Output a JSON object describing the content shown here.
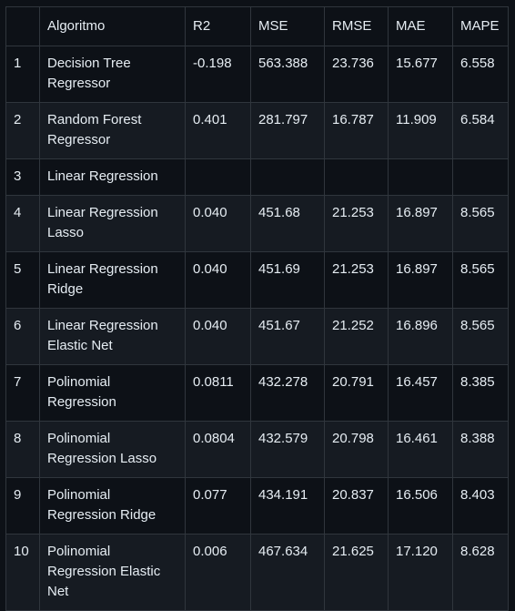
{
  "table": {
    "headers": [
      "",
      "Algoritmo",
      "R2",
      "MSE",
      "RMSE",
      "MAE",
      "MAPE"
    ],
    "rows": [
      [
        "1",
        "Decision Tree Regressor",
        "-0.198",
        "563.388",
        "23.736",
        "15.677",
        "6.558"
      ],
      [
        "2",
        "Random Forest Regressor",
        "0.401",
        "281.797",
        "16.787",
        "11.909",
        "6.584"
      ],
      [
        "3",
        "Linear Regression",
        "",
        "",
        "",
        "",
        ""
      ],
      [
        "4",
        "Linear Regression Lasso",
        "0.040",
        "451.68",
        "21.253",
        "16.897",
        "8.565"
      ],
      [
        "5",
        "Linear Regression Ridge",
        "0.040",
        "451.69",
        "21.253",
        "16.897",
        "8.565"
      ],
      [
        "6",
        "Linear Regression Elastic Net",
        "0.040",
        "451.67",
        "21.252",
        "16.896",
        "8.565"
      ],
      [
        "7",
        "Polinomial Regression",
        "0.0811",
        "432.278",
        "20.791",
        "16.457",
        "8.385"
      ],
      [
        "8",
        "Polinomial Regression Lasso",
        "0.0804",
        "432.579",
        "20.798",
        "16.461",
        "8.388"
      ],
      [
        "9",
        "Polinomial Regression Ridge",
        "0.077",
        "434.191",
        "20.837",
        "16.506",
        "8.403"
      ],
      [
        "10",
        "Polinomial Regression Elastic Net",
        "0.006",
        "467.634",
        "21.625",
        "17.120",
        "8.628"
      ]
    ]
  }
}
